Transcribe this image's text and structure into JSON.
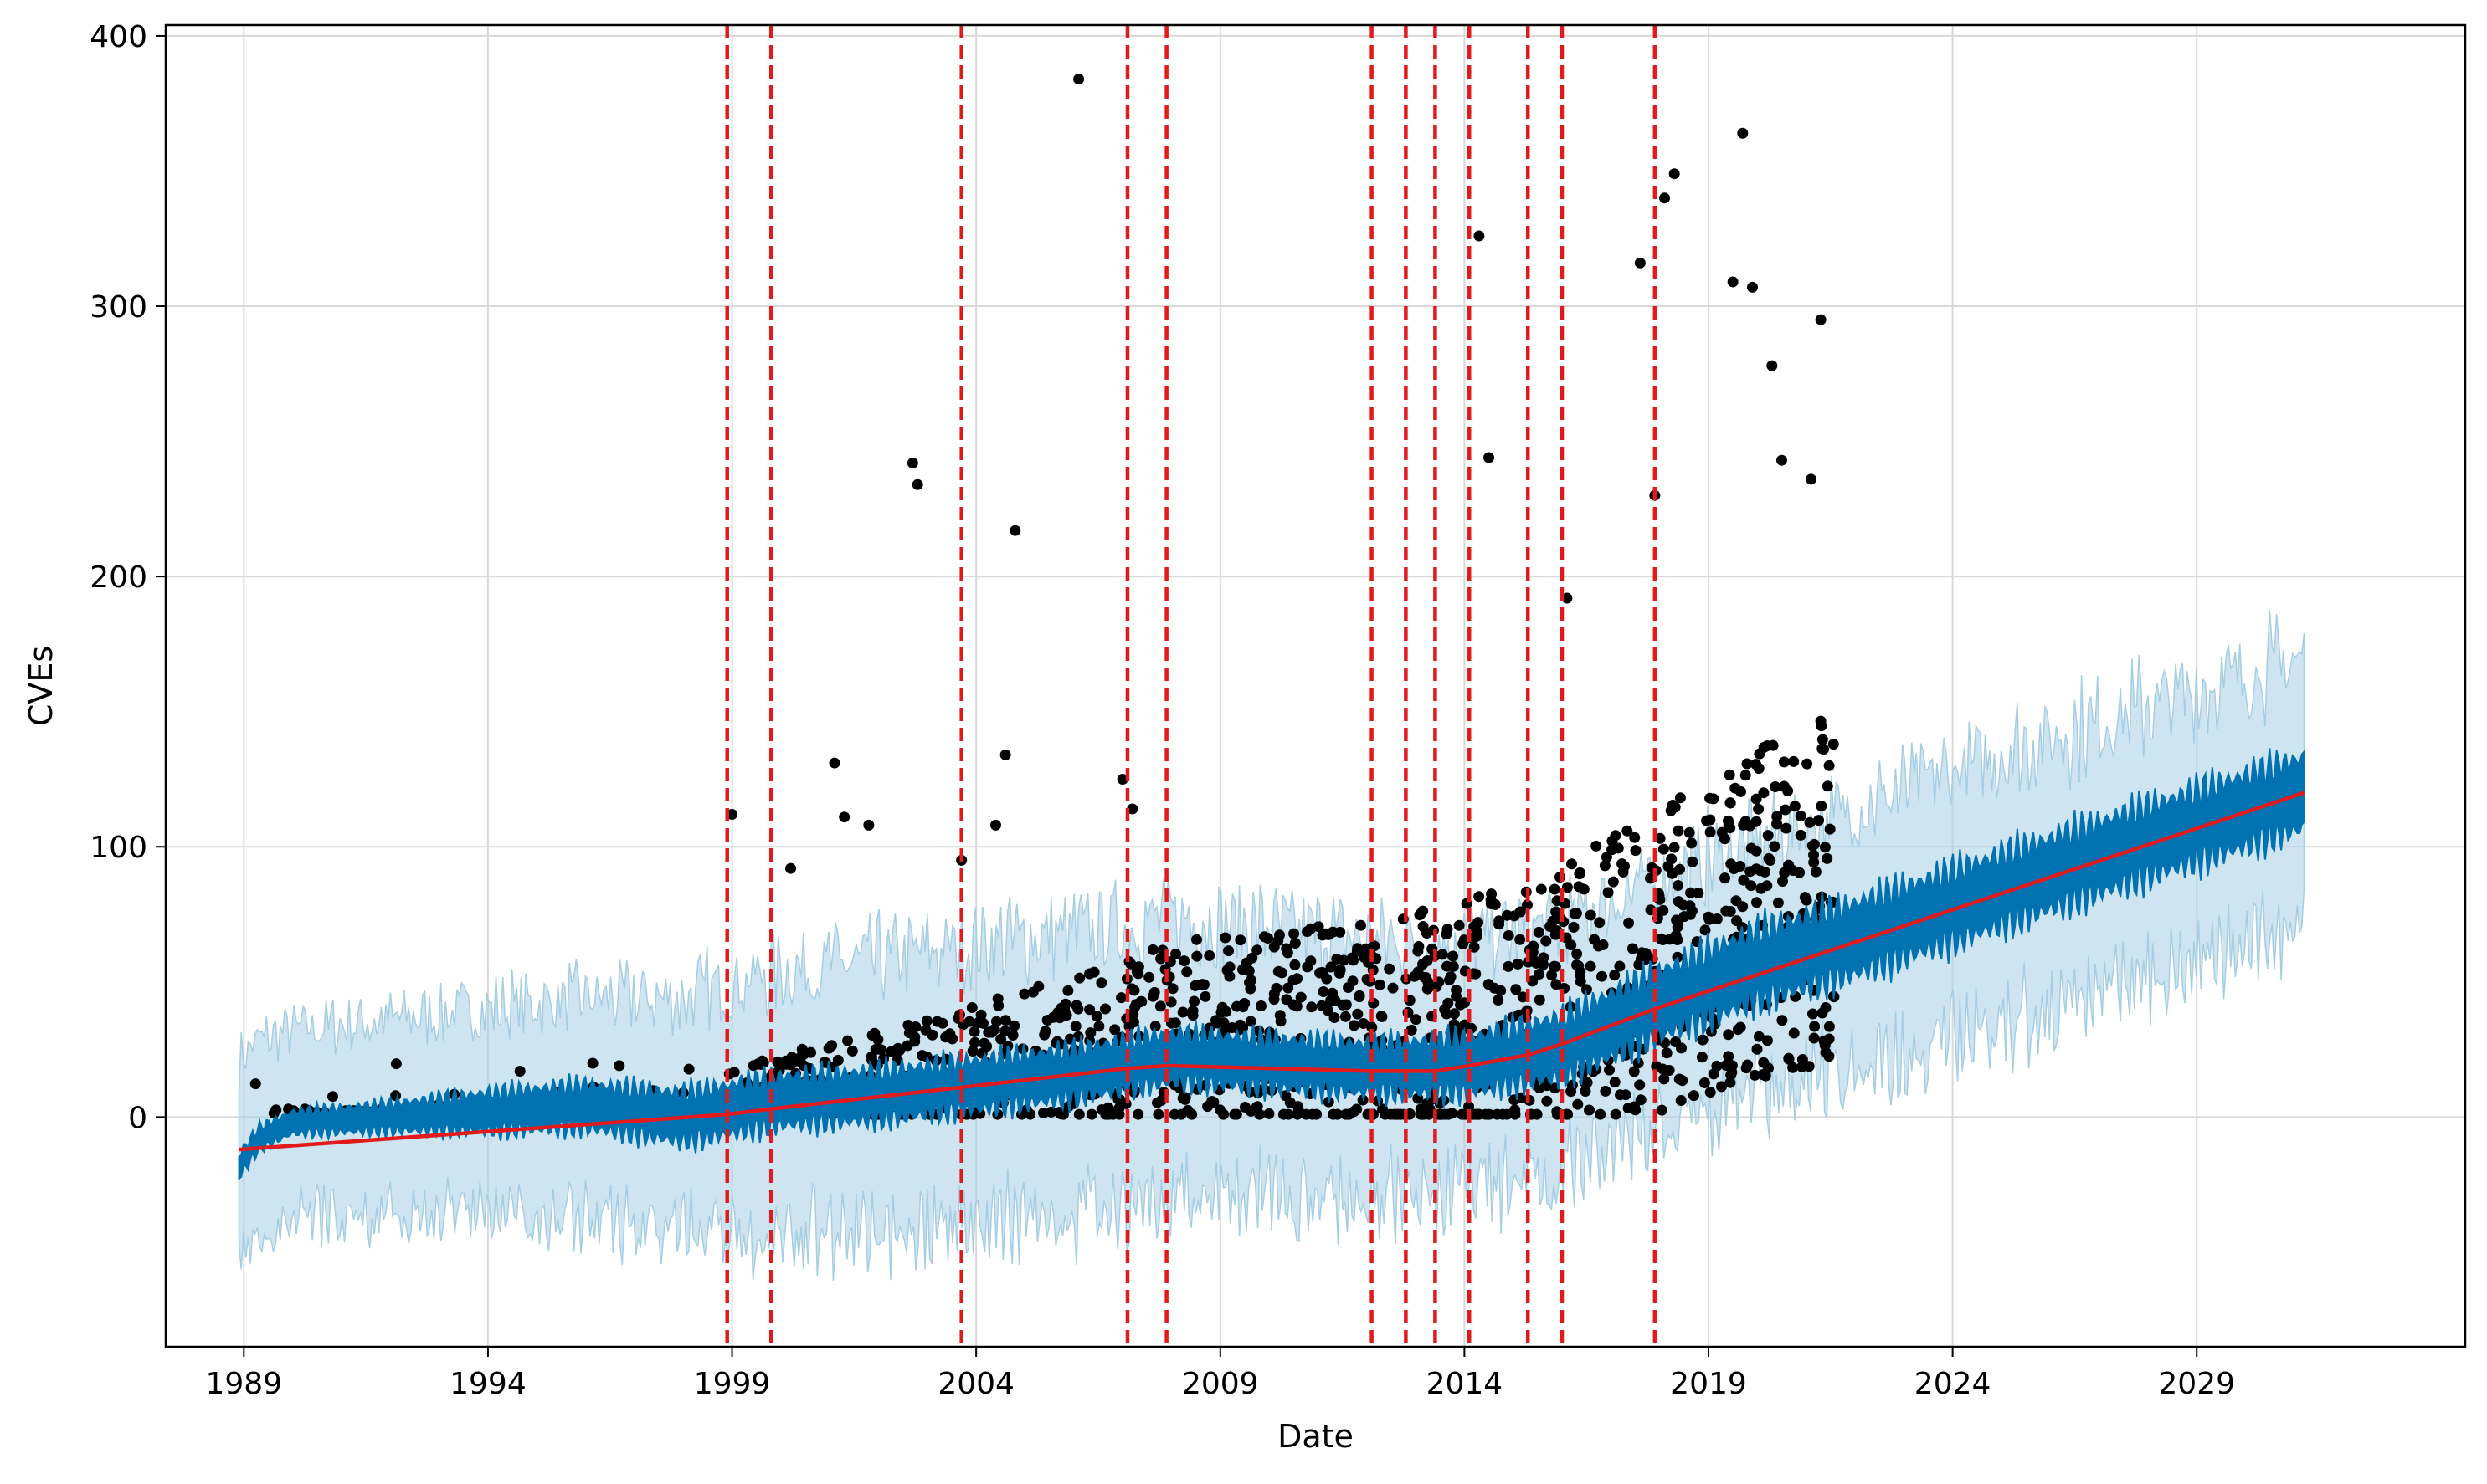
{
  "chart_data": {
    "type": "line",
    "title": "",
    "xlabel": "Date",
    "ylabel": "CVEs",
    "xlim": [
      1987.4,
      2034.5
    ],
    "ylim": [
      -85,
      404
    ],
    "x_ticks": [
      1989,
      1994,
      1999,
      2004,
      2009,
      2014,
      2019,
      2024,
      2029
    ],
    "x_tick_labels": [
      "1989",
      "1994",
      "1999",
      "2004",
      "2009",
      "2014",
      "2019",
      "2024",
      "2029"
    ],
    "y_ticks": [
      0,
      100,
      200,
      300,
      400
    ],
    "y_tick_labels": [
      "0",
      "100",
      "200",
      "300",
      "400"
    ],
    "grid": true,
    "colors": {
      "trend": "#e31a1c",
      "changepoint": "#e31a1c",
      "forecast": "#0072b2",
      "uncertainty": "#a6cee3",
      "observed": "#000000",
      "axis": "#000000",
      "grid": "#d9d9d9"
    },
    "changepoints": [
      1998.9,
      1999.8,
      2003.7,
      2007.1,
      2007.9,
      2012.1,
      2012.8,
      2013.4,
      2014.1,
      2015.3,
      2016.0,
      2017.9
    ],
    "trend": {
      "x": [
        1988.9,
        1998.9,
        1999.8,
        2003.7,
        2007.1,
        2007.9,
        2012.1,
        2012.8,
        2013.4,
        2014.1,
        2015.3,
        2016.0,
        2017.9,
        2031.2
      ],
      "y": [
        -12,
        1,
        3,
        11,
        18,
        19,
        17,
        17,
        17,
        19,
        23,
        27,
        40,
        120
      ]
    },
    "forecast_band": {
      "x": [
        1988.9,
        1989.3,
        1990,
        1992,
        1994,
        1996,
        1998,
        2000,
        2002,
        2004,
        2006,
        2008,
        2010,
        2012,
        2014,
        2016,
        2018,
        2020,
        2022,
        2024,
        2026,
        2028,
        2031.2
      ],
      "center": [
        -18,
        -8,
        -2,
        0,
        2,
        4,
        0,
        6,
        8,
        12,
        16,
        22,
        20,
        18,
        19,
        26,
        42,
        56,
        66,
        78,
        90,
        102,
        120
      ],
      "inner": [
        4,
        4,
        4,
        5,
        7,
        8,
        9,
        9,
        9,
        9,
        9,
        9,
        9,
        9,
        10,
        11,
        12,
        13,
        13,
        13,
        13,
        13,
        13
      ],
      "outer": [
        40,
        36,
        34,
        36,
        38,
        40,
        44,
        48,
        50,
        52,
        52,
        52,
        50,
        48,
        46,
        46,
        46,
        46,
        48,
        50,
        50,
        50,
        50
      ]
    },
    "observed": {
      "range": [
        1988.9,
        2021.6
      ],
      "outliers": [
        [
          1999.0,
          112
        ],
        [
          2000.2,
          92
        ],
        [
          2001.1,
          131
        ],
        [
          2001.3,
          111
        ],
        [
          2001.8,
          108
        ],
        [
          2002.7,
          242
        ],
        [
          2002.8,
          234
        ],
        [
          2003.7,
          95
        ],
        [
          2004.4,
          108
        ],
        [
          2004.6,
          134
        ],
        [
          2004.8,
          217
        ],
        [
          2006.1,
          384
        ],
        [
          2007.0,
          125
        ],
        [
          2007.2,
          114
        ],
        [
          2014.3,
          326
        ],
        [
          2014.5,
          244
        ],
        [
          2016.1,
          192
        ],
        [
          2017.6,
          316
        ],
        [
          2017.9,
          230
        ],
        [
          2018.1,
          340
        ],
        [
          2018.3,
          349
        ],
        [
          2019.5,
          309
        ],
        [
          2019.7,
          364
        ],
        [
          2019.9,
          307
        ],
        [
          2020.3,
          278
        ],
        [
          2020.5,
          243
        ],
        [
          2021.3,
          295
        ],
        [
          2021.1,
          236
        ]
      ]
    }
  }
}
